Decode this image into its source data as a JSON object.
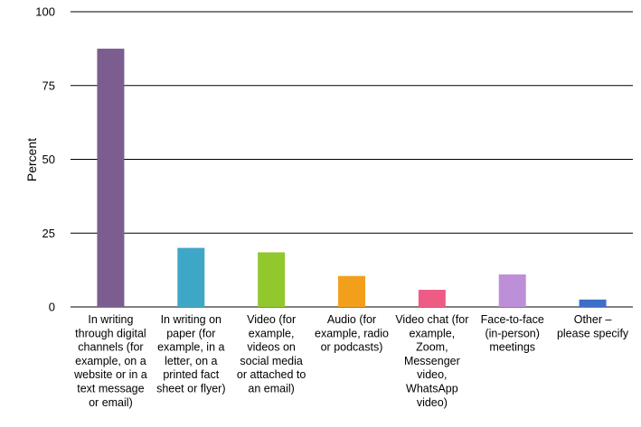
{
  "chart_data": {
    "type": "bar",
    "title": "",
    "xlabel": "",
    "ylabel": "Percent",
    "ylim": [
      0,
      100
    ],
    "yticks": [
      0,
      25,
      50,
      75,
      100
    ],
    "grid": true,
    "categories": [
      [
        "In writing",
        "through digital",
        "channels (for",
        "example, on a",
        "website or in a",
        "text message",
        "or email)"
      ],
      [
        "In writing on",
        "paper (for",
        "example, in a",
        "letter, on a",
        "printed fact",
        "sheet or flyer)"
      ],
      [
        "Video (for",
        "example,",
        "videos on",
        "social media",
        "or attached to",
        "an email)"
      ],
      [
        "Audio (for",
        "example, radio",
        "or podcasts)"
      ],
      [
        "Video chat (for",
        "example,",
        "Zoom,",
        "Messenger",
        "video,",
        "WhatsApp",
        "video)"
      ],
      [
        "Face-to-face",
        "(in-person)",
        "meetings"
      ],
      [
        "Other –",
        "please specify"
      ]
    ],
    "values": [
      87.5,
      20,
      18.5,
      10.5,
      5.8,
      11,
      2.5
    ],
    "colors": [
      "#7b5e8f",
      "#3fa7c6",
      "#93c72e",
      "#f2a01c",
      "#ee5c86",
      "#bd8fd8",
      "#3d6ec9"
    ]
  }
}
